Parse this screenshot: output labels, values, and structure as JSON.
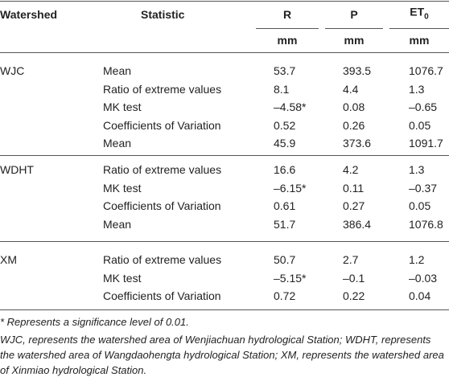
{
  "header": {
    "columns": [
      "Watershed",
      "Statistic",
      "R",
      "P",
      "ET"
    ],
    "et_subscript": "0",
    "units": [
      "mm",
      "mm",
      "mm"
    ]
  },
  "groups": [
    {
      "watershed": "WJC",
      "rows": [
        [
          "Mean",
          "53.7",
          "393.5",
          "1076.7"
        ],
        [
          "Ratio of extreme values",
          "8.1",
          "4.4",
          "1.3"
        ],
        [
          "MK test",
          "–4.58*",
          "0.08",
          "–0.65"
        ],
        [
          "Coefficients of Variation",
          "0.52",
          "0.26",
          "0.05"
        ],
        [
          "Mean",
          "45.9",
          "373.6",
          "1091.7"
        ]
      ]
    },
    {
      "watershed": "WDHT",
      "rows": [
        [
          "Ratio of extreme values",
          "16.6",
          "4.2",
          "1.3"
        ],
        [
          "MK test",
          "–6.15*",
          "0.11",
          "–0.37"
        ],
        [
          "Coefficients of Variation",
          "0.61",
          "0.27",
          "0.05"
        ],
        [
          "Mean",
          "51.7",
          "386.4",
          "1076.8"
        ]
      ]
    },
    {
      "watershed": "XM",
      "rows": [
        [
          "Ratio of extreme values",
          "50.7",
          "2.7",
          "1.2"
        ],
        [
          "MK test",
          "–5.15*",
          "–0.1",
          "–0.03"
        ],
        [
          "Coefficients of Variation",
          "0.72",
          "0.22",
          "0.04"
        ]
      ]
    }
  ],
  "footnotes": [
    "* Represents a significance level of 0.01.",
    "WJC, represents the watershed area of Wenjiachuan hydrological Station; WDHT, represents the watershed area of Wangdaohengta hydrological Station; XM, represents the watershed area of Xinmiao hydrological Station."
  ]
}
